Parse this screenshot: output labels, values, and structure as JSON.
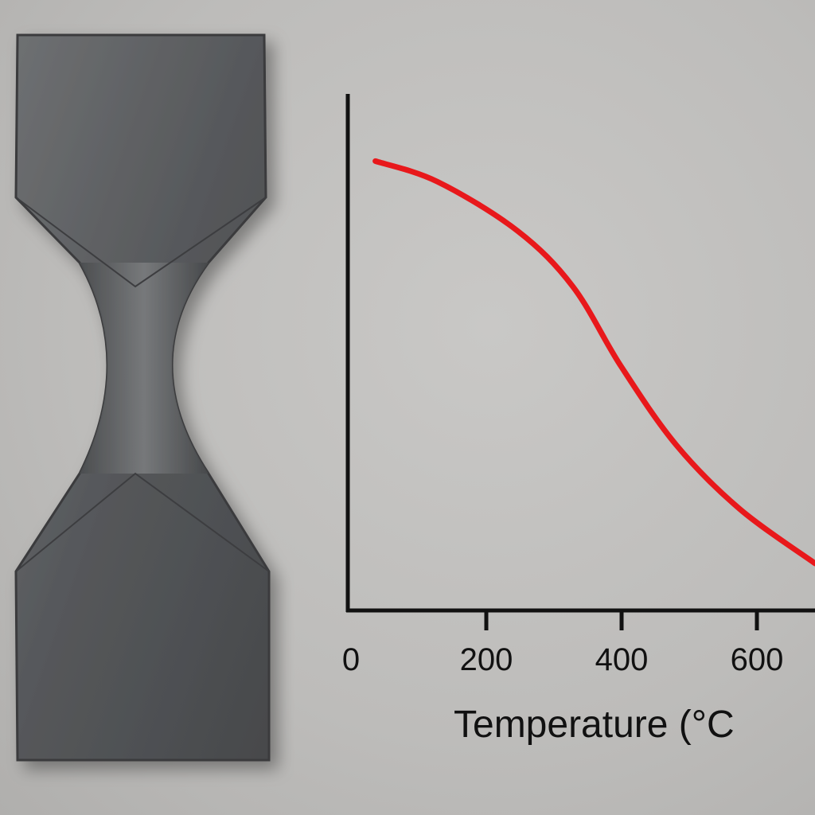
{
  "chart_data": {
    "type": "line",
    "title": "",
    "xlabel": "Temperature (°C",
    "ylabel": "",
    "xlim": [
      0,
      690
    ],
    "ylim": [
      0,
      1
    ],
    "xticks": [
      "0",
      "200",
      "400",
      "600"
    ],
    "yticks": [],
    "grid": false,
    "legend": "none",
    "series": [
      {
        "color": "#e8181b",
        "x": [
          36,
          128,
          246,
          328,
          399,
          481,
          575,
          686
        ],
        "y": [
          0.87,
          0.83,
          0.735,
          0.627,
          0.473,
          0.32,
          0.196,
          0.091
        ]
      }
    ]
  },
  "specimen": {
    "description_icon": "metal-tensile-specimen-icon",
    "color": "#5a5c5e"
  }
}
